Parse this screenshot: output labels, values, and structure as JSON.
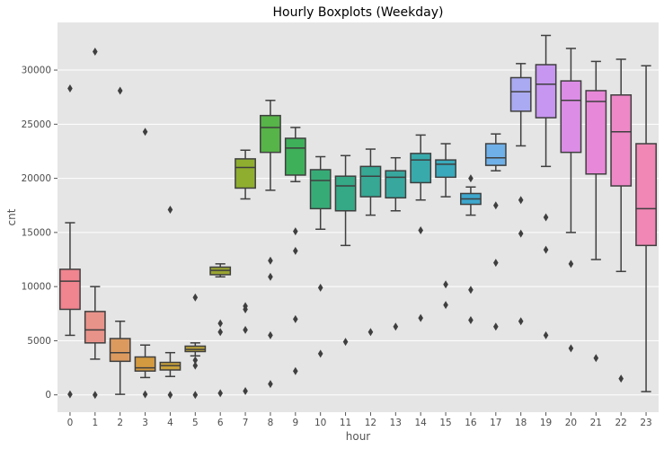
{
  "chart_data": {
    "type": "box",
    "title": "Hourly Boxplots (Weekday)",
    "xlabel": "hour",
    "ylabel": "cnt",
    "ylim": [
      -1600,
      34400
    ],
    "yticks": [
      0,
      5000,
      10000,
      15000,
      20000,
      25000,
      30000
    ],
    "grid": true,
    "background": "#e5e5e5",
    "categories": [
      "0",
      "1",
      "2",
      "3",
      "4",
      "5",
      "6",
      "7",
      "8",
      "9",
      "10",
      "11",
      "12",
      "13",
      "14",
      "15",
      "16",
      "17",
      "18",
      "19",
      "20",
      "21",
      "22",
      "23"
    ],
    "boxes": [
      {
        "hour": "0",
        "color": "#f0848f",
        "q1": 7900,
        "median": 10500,
        "q3": 11600,
        "whisker_low": 5500,
        "whisker_high": 15900,
        "outliers": [
          28300,
          50
        ]
      },
      {
        "hour": "1",
        "color": "#e8938a",
        "q1": 4800,
        "median": 6000,
        "q3": 7700,
        "whisker_low": 3300,
        "whisker_high": 10000,
        "outliers": [
          31700,
          0
        ]
      },
      {
        "hour": "2",
        "color": "#dd9a5f",
        "q1": 3100,
        "median": 3900,
        "q3": 5200,
        "whisker_low": 50,
        "whisker_high": 6800,
        "outliers": [
          28100
        ]
      },
      {
        "hour": "3",
        "color": "#d49a40",
        "q1": 2200,
        "median": 2500,
        "q3": 3500,
        "whisker_low": 1600,
        "whisker_high": 4600,
        "outliers": [
          24300,
          50
        ]
      },
      {
        "hour": "4",
        "color": "#c9a23a",
        "q1": 2300,
        "median": 2700,
        "q3": 3000,
        "whisker_low": 1700,
        "whisker_high": 3900,
        "outliers": [
          17100,
          0
        ]
      },
      {
        "hour": "5",
        "color": "#bba33a",
        "q1": 4000,
        "median": 4200,
        "q3": 4500,
        "whisker_low": 3600,
        "whisker_high": 4800,
        "outliers": [
          9000,
          3200,
          2700,
          0
        ]
      },
      {
        "hour": "6",
        "color": "#9aa431",
        "q1": 11100,
        "median": 11500,
        "q3": 11800,
        "whisker_low": 10900,
        "whisker_high": 12100,
        "outliers": [
          6600,
          5800,
          150
        ]
      },
      {
        "hour": "7",
        "color": "#8fae30",
        "q1": 19100,
        "median": 21000,
        "q3": 21800,
        "whisker_low": 18100,
        "whisker_high": 22600,
        "outliers": [
          8200,
          7900,
          6000,
          350
        ]
      },
      {
        "hour": "8",
        "color": "#56b448",
        "q1": 22400,
        "median": 24700,
        "q3": 25800,
        "whisker_low": 18900,
        "whisker_high": 27200,
        "outliers": [
          12400,
          10900,
          5500,
          1000
        ]
      },
      {
        "hour": "9",
        "color": "#3fb05a",
        "q1": 20300,
        "median": 22800,
        "q3": 23700,
        "whisker_low": 19700,
        "whisker_high": 24700,
        "outliers": [
          15100,
          13300,
          7000,
          2200
        ]
      },
      {
        "hour": "10",
        "color": "#37ab76",
        "q1": 17200,
        "median": 19800,
        "q3": 20800,
        "whisker_low": 15300,
        "whisker_high": 22000,
        "outliers": [
          9900,
          3800
        ]
      },
      {
        "hour": "11",
        "color": "#35a886",
        "q1": 17000,
        "median": 19300,
        "q3": 20200,
        "whisker_low": 13800,
        "whisker_high": 22100,
        "outliers": [
          4900
        ]
      },
      {
        "hour": "12",
        "color": "#36a894",
        "q1": 18300,
        "median": 20200,
        "q3": 21100,
        "whisker_low": 16600,
        "whisker_high": 22700,
        "outliers": [
          5800
        ]
      },
      {
        "hour": "13",
        "color": "#38a89f",
        "q1": 18200,
        "median": 20100,
        "q3": 20700,
        "whisker_low": 17000,
        "whisker_high": 21900,
        "outliers": [
          6300
        ]
      },
      {
        "hour": "14",
        "color": "#38aaac",
        "q1": 19600,
        "median": 21700,
        "q3": 22300,
        "whisker_low": 18000,
        "whisker_high": 24000,
        "outliers": [
          15200,
          7100
        ]
      },
      {
        "hour": "15",
        "color": "#3aa9bb",
        "q1": 20100,
        "median": 21300,
        "q3": 21700,
        "whisker_low": 18300,
        "whisker_high": 23200,
        "outliers": [
          10200,
          8300
        ]
      },
      {
        "hour": "16",
        "color": "#3ea7cd",
        "q1": 17600,
        "median": 18100,
        "q3": 18600,
        "whisker_low": 16600,
        "whisker_high": 19200,
        "outliers": [
          20000,
          9700,
          6900
        ]
      },
      {
        "hour": "17",
        "color": "#6fb0e8",
        "q1": 21200,
        "median": 21900,
        "q3": 23200,
        "whisker_low": 20700,
        "whisker_high": 24100,
        "outliers": [
          17500,
          12200,
          6300
        ]
      },
      {
        "hour": "18",
        "color": "#aaaaf2",
        "q1": 26200,
        "median": 28000,
        "q3": 29300,
        "whisker_low": 23000,
        "whisker_high": 30600,
        "outliers": [
          18000,
          14900,
          6800
        ]
      },
      {
        "hour": "19",
        "color": "#c796f0",
        "q1": 25600,
        "median": 28700,
        "q3": 30500,
        "whisker_low": 21100,
        "whisker_high": 33200,
        "outliers": [
          16400,
          13400,
          5500
        ]
      },
      {
        "hour": "20",
        "color": "#dc8de6",
        "q1": 22400,
        "median": 27200,
        "q3": 29000,
        "whisker_low": 15000,
        "whisker_high": 32000,
        "outliers": [
          12100,
          4300
        ]
      },
      {
        "hour": "21",
        "color": "#e888d8",
        "q1": 20400,
        "median": 27100,
        "q3": 28100,
        "whisker_low": 12500,
        "whisker_high": 30800,
        "outliers": [
          3400
        ]
      },
      {
        "hour": "22",
        "color": "#ee88c7",
        "q1": 19300,
        "median": 24300,
        "q3": 27700,
        "whisker_low": 11400,
        "whisker_high": 31000,
        "outliers": [
          1500
        ]
      },
      {
        "hour": "23",
        "color": "#f087b4",
        "q1": 13800,
        "median": 17200,
        "q3": 23200,
        "whisker_low": 300,
        "whisker_high": 30400,
        "outliers": []
      }
    ]
  }
}
